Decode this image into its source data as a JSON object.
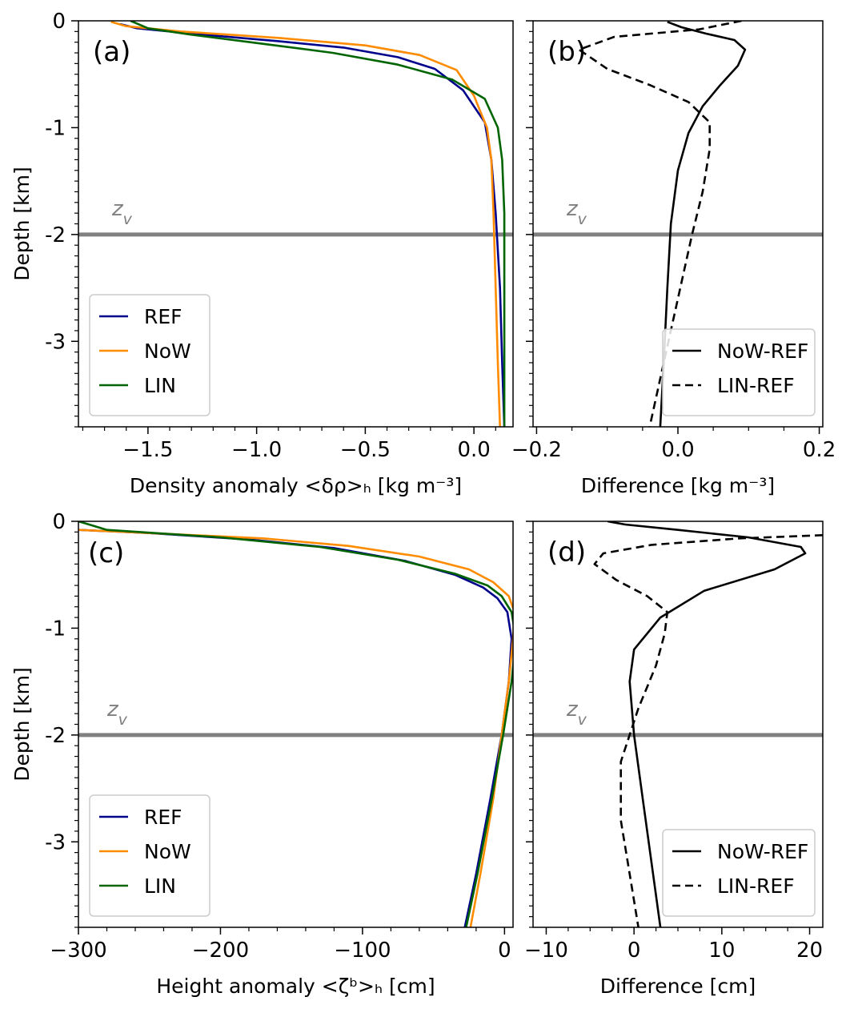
{
  "chart_data": [
    {
      "id": "a",
      "type": "line",
      "panel_label": "(a)",
      "xlabel": "Density anomaly  <δρ>ₕ [kg m⁻³]",
      "ylabel": "Depth [km]",
      "xlim": [
        -1.82,
        0.18
      ],
      "ylim": [
        -3.8,
        0
      ],
      "xticks": [
        -1.5,
        -1.0,
        -0.5,
        0.0
      ],
      "xtick_labels": [
        "−1.5",
        "−1.0",
        "−0.5",
        "0.0"
      ],
      "yticks": [
        0,
        -1,
        -2,
        -3
      ],
      "ytick_labels": [
        "0",
        "-1",
        "-2",
        "-3"
      ],
      "reference_line": {
        "y": -2,
        "label": "z_v",
        "color": "#808080"
      },
      "legend_loc": "lower left",
      "series": [
        {
          "name": "REF",
          "color": "#00008b",
          "dash": "solid",
          "x": [
            -1.63,
            -1.55,
            -1.3,
            -0.9,
            -0.6,
            -0.35,
            -0.18,
            -0.05,
            0.05,
            0.08,
            0.1,
            0.12,
            0.13,
            0.14
          ],
          "y": [
            -0.03,
            -0.07,
            -0.12,
            -0.19,
            -0.25,
            -0.34,
            -0.45,
            -0.65,
            -0.95,
            -1.3,
            -1.8,
            -2.5,
            -3.2,
            -3.8
          ]
        },
        {
          "name": "NoW",
          "color": "#ff8c00",
          "dash": "solid",
          "x": [
            -1.67,
            -1.6,
            -1.35,
            -0.9,
            -0.5,
            -0.25,
            -0.08,
            0.0,
            0.06,
            0.08,
            0.09,
            0.1,
            0.11,
            0.12
          ],
          "y": [
            -0.01,
            -0.05,
            -0.1,
            -0.16,
            -0.23,
            -0.32,
            -0.46,
            -0.7,
            -1.0,
            -1.3,
            -1.8,
            -2.5,
            -3.2,
            -3.8
          ]
        },
        {
          "name": "LIN",
          "color": "#006400",
          "dash": "solid",
          "x": [
            -1.58,
            -1.5,
            -1.3,
            -0.95,
            -0.65,
            -0.35,
            -0.1,
            0.05,
            0.11,
            0.13,
            0.14,
            0.14,
            0.14,
            0.14
          ],
          "y": [
            0.0,
            -0.07,
            -0.13,
            -0.22,
            -0.3,
            -0.41,
            -0.55,
            -0.73,
            -1.0,
            -1.3,
            -1.8,
            -2.5,
            -3.2,
            -3.8
          ]
        }
      ]
    },
    {
      "id": "b",
      "type": "line",
      "panel_label": "(b)",
      "xlabel": "Difference [kg m⁻³]",
      "xlim": [
        -0.205,
        0.205
      ],
      "ylim": [
        -3.8,
        0
      ],
      "xticks": [
        -0.2,
        0.0,
        0.2
      ],
      "xtick_labels": [
        "−0.2",
        "0.0",
        "0.2"
      ],
      "yticks": [
        0,
        -1,
        -2,
        -3
      ],
      "reference_line": {
        "y": -2,
        "label": "z_v",
        "color": "#808080"
      },
      "legend_loc": "lower right",
      "series": [
        {
          "name": "NoW-REF",
          "color": "#000000",
          "dash": "solid",
          "x": [
            -0.015,
            0.005,
            0.04,
            0.08,
            0.095,
            0.085,
            0.06,
            0.035,
            0.015,
            0.0,
            -0.01,
            -0.015,
            -0.02,
            -0.025
          ],
          "y": [
            -0.01,
            -0.06,
            -0.12,
            -0.18,
            -0.27,
            -0.42,
            -0.6,
            -0.8,
            -1.05,
            -1.4,
            -1.9,
            -2.5,
            -3.2,
            -3.8
          ]
        },
        {
          "name": "LIN-REF",
          "color": "#000000",
          "dash": "dashed",
          "x": [
            0.09,
            0.03,
            -0.09,
            -0.14,
            -0.1,
            -0.04,
            0.015,
            0.045,
            0.045,
            0.035,
            0.02,
            0.0,
            -0.02,
            -0.04
          ],
          "y": [
            0.0,
            -0.08,
            -0.15,
            -0.27,
            -0.45,
            -0.6,
            -0.76,
            -0.95,
            -1.2,
            -1.6,
            -2.0,
            -2.6,
            -3.2,
            -3.8
          ]
        }
      ]
    },
    {
      "id": "c",
      "type": "line",
      "panel_label": "(c)",
      "xlabel": "Height anomaly  <ζᵇ>ₕ [cm]",
      "ylabel": "Depth [km]",
      "xlim": [
        -300,
        6
      ],
      "ylim": [
        -3.8,
        0
      ],
      "xticks": [
        -300,
        -200,
        -100,
        0
      ],
      "xtick_labels": [
        "−300",
        "−200",
        "−100",
        "0"
      ],
      "yticks": [
        0,
        -1,
        -2,
        -3
      ],
      "ytick_labels": [
        "0",
        "-1",
        "-2",
        "-3"
      ],
      "reference_line": {
        "y": -2,
        "label": "z_v",
        "color": "#808080"
      },
      "legend_loc": "lower left",
      "series": [
        {
          "name": "REF",
          "color": "#00008b",
          "dash": "solid",
          "x": [
            -300,
            -250,
            -180,
            -120,
            -70,
            -35,
            -15,
            -5,
            2,
            5,
            3,
            -2,
            -10,
            -20,
            -28
          ],
          "y": [
            -0.08,
            -0.11,
            -0.17,
            -0.25,
            -0.37,
            -0.5,
            -0.62,
            -0.72,
            -0.85,
            -1.1,
            -1.5,
            -2.0,
            -2.6,
            -3.3,
            -3.8
          ]
        },
        {
          "name": "NoW",
          "color": "#ff8c00",
          "dash": "solid",
          "x": [
            -300,
            -250,
            -170,
            -110,
            -60,
            -25,
            -8,
            3,
            7,
            6,
            3,
            -2,
            -8,
            -17,
            -24
          ],
          "y": [
            -0.08,
            -0.11,
            -0.16,
            -0.23,
            -0.33,
            -0.45,
            -0.57,
            -0.7,
            -0.85,
            -1.1,
            -1.5,
            -2.0,
            -2.6,
            -3.3,
            -3.8
          ]
        },
        {
          "name": "LIN",
          "color": "#006400",
          "dash": "solid",
          "x": [
            -300,
            -280,
            -200,
            -130,
            -75,
            -35,
            -12,
            -2,
            5,
            8,
            5,
            -1,
            -9,
            -19,
            -27
          ],
          "y": [
            0.0,
            -0.08,
            -0.15,
            -0.24,
            -0.36,
            -0.49,
            -0.6,
            -0.7,
            -0.85,
            -1.1,
            -1.5,
            -2.0,
            -2.6,
            -3.3,
            -3.8
          ]
        }
      ]
    },
    {
      "id": "d",
      "type": "line",
      "panel_label": "(d)",
      "xlabel": "Difference [cm]",
      "xlim": [
        -11.5,
        21.5
      ],
      "ylim": [
        -3.8,
        0
      ],
      "xticks": [
        -10,
        0,
        10,
        20
      ],
      "xtick_labels": [
        "−10",
        "0",
        "10",
        "20"
      ],
      "yticks": [
        0,
        -1,
        -2,
        -3
      ],
      "reference_line": {
        "y": -2,
        "label": "z_v",
        "color": "#808080"
      },
      "legend_loc": "lower right",
      "series": [
        {
          "name": "NoW-REF",
          "color": "#000000",
          "dash": "solid",
          "x": [
            -3,
            -1,
            5,
            13,
            19,
            19.5,
            16,
            8,
            3,
            0,
            -0.5,
            0,
            1,
            2,
            3
          ],
          "y": [
            0.0,
            -0.03,
            -0.08,
            -0.15,
            -0.24,
            -0.3,
            -0.45,
            -0.65,
            -0.9,
            -1.2,
            -1.5,
            -2.0,
            -2.6,
            -3.2,
            -3.8
          ]
        },
        {
          "name": "LIN-REF",
          "color": "#000000",
          "dash": "dashed",
          "x": [
            21.5,
            12,
            2,
            -3.5,
            -4.5,
            -2,
            1.5,
            3.8,
            3.5,
            2.5,
            0.5,
            -1.5,
            -1.5,
            -0.5,
            0.5
          ],
          "y": [
            -0.13,
            -0.16,
            -0.22,
            -0.3,
            -0.4,
            -0.55,
            -0.7,
            -0.85,
            -1.05,
            -1.35,
            -1.75,
            -2.25,
            -2.8,
            -3.3,
            -3.8
          ]
        }
      ]
    }
  ]
}
